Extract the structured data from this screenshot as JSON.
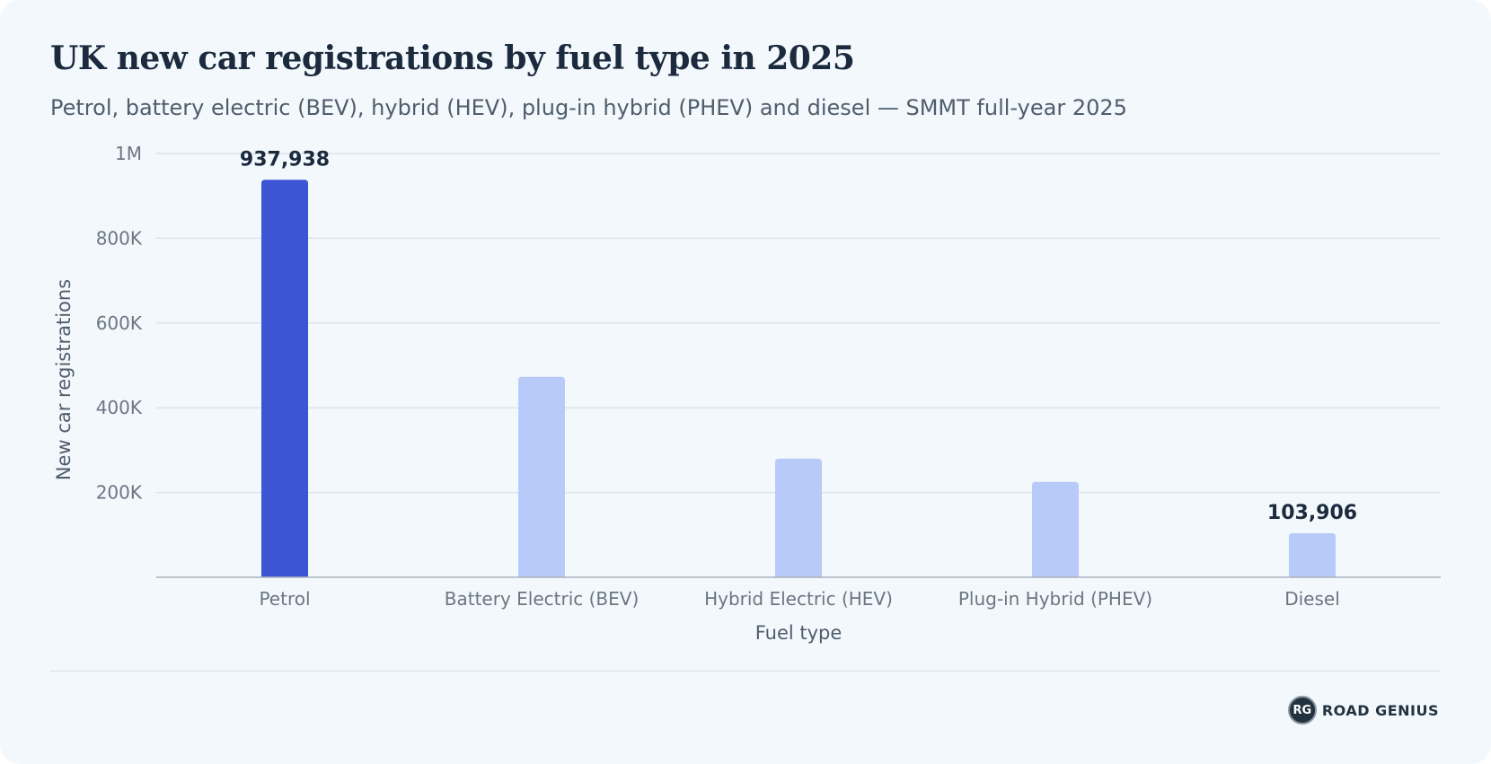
{
  "page": {
    "title": "UK new car registrations by fuel type in 2025",
    "subtitle": "Petrol, battery electric (BEV), hybrid (HEV), plug-in hybrid (PHEV) and diesel — SMMT full-year 2025"
  },
  "brand": {
    "badge": "RG",
    "name": "ROAD GENIUS"
  },
  "colors": {
    "highlight": "#3d55d4",
    "bar": "#b8caf8",
    "grid": "#dde3ea",
    "axis": "#a9b2bb"
  },
  "chart_data": {
    "type": "bar",
    "categories": [
      "Petrol",
      "Battery Electric (BEV)",
      "Hybrid Electric (HEV)",
      "Plug-in Hybrid (PHEV)",
      "Diesel"
    ],
    "values": [
      937938,
      473000,
      280000,
      225000,
      103906
    ],
    "highlight_index": 0,
    "data_labels": [
      {
        "index": 0,
        "text": "937,938"
      },
      {
        "index": 4,
        "text": "103,906"
      }
    ],
    "xlabel": "Fuel type",
    "ylabel": "New car registrations",
    "ylim": [
      0,
      1000000
    ],
    "yticks": [
      {
        "value": 200000,
        "label": "200K"
      },
      {
        "value": 400000,
        "label": "400K"
      },
      {
        "value": 600000,
        "label": "600K"
      },
      {
        "value": 800000,
        "label": "800K"
      },
      {
        "value": 1000000,
        "label": "1M"
      }
    ],
    "grid": true,
    "legend": "none"
  }
}
